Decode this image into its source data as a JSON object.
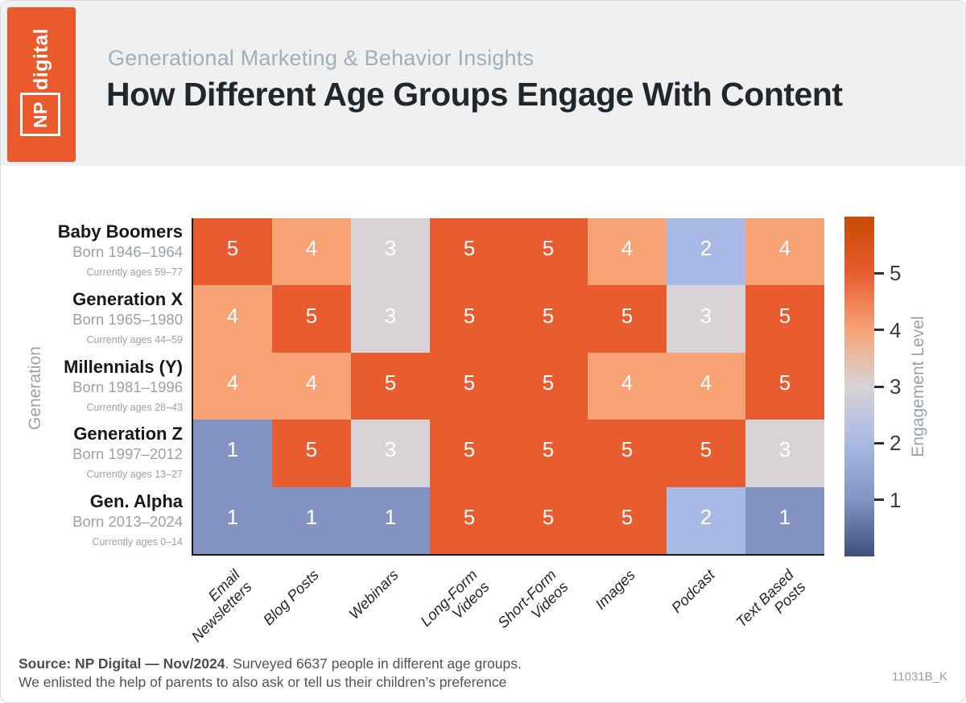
{
  "header": {
    "logo_np": "NP",
    "logo_digital": "digital",
    "subtitle": "Generational Marketing & Behavior Insights",
    "title": "How Different Age Groups Engage With Content"
  },
  "chart_data": {
    "type": "heatmap",
    "title": "How Different Age Groups Engage With Content",
    "xlabel": "",
    "ylabel": "Generation",
    "colorbar_label": "Engagement Level",
    "colorbar_ticks": [
      1,
      2,
      3,
      4,
      5
    ],
    "colorbar_range": [
      0,
      6
    ],
    "columns": [
      "Email\nNewsletters",
      "Blog Posts",
      "Webinars",
      "Long-Form\nVideos",
      "Short-Form\nVideos",
      "Images",
      "Podcast",
      "Text Based\nPosts"
    ],
    "rows": [
      {
        "name": "Baby Boomers",
        "born": "Born 1946–1964",
        "ages": "Currently ages 59–77",
        "values": [
          5,
          4,
          3,
          5,
          5,
          4,
          2,
          4
        ]
      },
      {
        "name": "Generation X",
        "born": "Born 1965–1980",
        "ages": "Currently ages 44–59",
        "values": [
          4,
          5,
          3,
          5,
          5,
          5,
          3,
          5
        ]
      },
      {
        "name": "Millennials (Y)",
        "born": "Born 1981–1996",
        "ages": "Currently ages 28–43",
        "values": [
          4,
          4,
          5,
          5,
          5,
          4,
          4,
          5
        ]
      },
      {
        "name": "Generation Z",
        "born": "Born 1997–2012",
        "ages": "Currently ages 13–27",
        "values": [
          1,
          5,
          3,
          5,
          5,
          5,
          5,
          3
        ]
      },
      {
        "name": "Gen. Alpha",
        "born": "Born 2013–2024",
        "ages": "Currently ages 0–14",
        "values": [
          1,
          1,
          1,
          5,
          5,
          5,
          2,
          1
        ]
      }
    ],
    "value_colors": {
      "1": "#8394c4",
      "2": "#a9b9e5",
      "3": "#d8d3d7",
      "4": "#f7a376",
      "5": "#e85c30"
    },
    "colorbar_gradient": [
      "#c84b04",
      "#e85c30",
      "#f7a376",
      "#d8d3d7",
      "#a9b9e5",
      "#8394c4",
      "#3e4e7c"
    ]
  },
  "footer": {
    "source_bold": "Source:  NP Digital — Nov/2024",
    "source_rest": ". Surveyed 6637 people in different age groups.",
    "line2": "We enlisted the help of parents to also ask or tell us their children’s preference",
    "code": "11031B_K"
  },
  "colors": {
    "brand_orange": "#eb5a2d",
    "header_bg": "#eef0f2",
    "spine": "#1b1b1b"
  }
}
